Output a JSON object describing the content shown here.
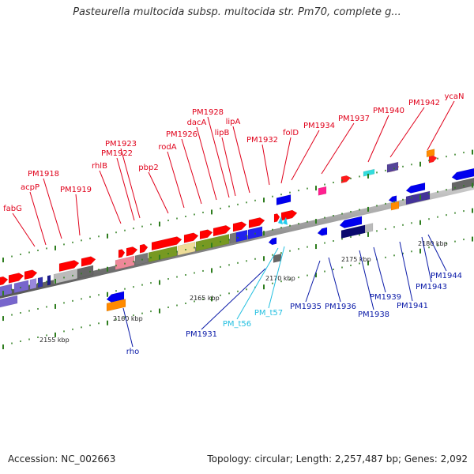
{
  "title": "Pasteurella multocida subsp. multocida str. Pm70, complete g...",
  "footer": {
    "accession": "Accession: NC_002663",
    "summary": "Topology: circular; Length: 2,257,487 bp; Genes: 2,092"
  },
  "colors": {
    "forward_label": "#e0001a",
    "reverse_label": "#0a1aa8",
    "trna_label": "#22bfe0",
    "backbone": "#888888",
    "tick": "#2e7d1e"
  },
  "scale": {
    "ticks": [
      "2155 kbp",
      "2160 kbp",
      "2165 kbp",
      "2170 kbp",
      "2175 kbp",
      "2180 kbp"
    ]
  },
  "labels": {
    "forward": [
      "fabG",
      "acpP",
      "PM1918",
      "PM1919",
      "rhlB",
      "PM1922",
      "PM1923",
      "pbp2",
      "rodA",
      "PM1926",
      "dacA",
      "PM1928",
      "lipB",
      "lipA",
      "PM1932",
      "folD",
      "PM1934",
      "PM1937",
      "PM1940",
      "PM1942",
      "ycaN"
    ],
    "reverse": [
      "rho",
      "PM1931",
      "PM1935",
      "PM1936",
      "PM1938",
      "PM1939",
      "PM1941",
      "PM1943",
      "PM1944"
    ],
    "trna": [
      "PM_t56",
      "PM_t57"
    ]
  }
}
